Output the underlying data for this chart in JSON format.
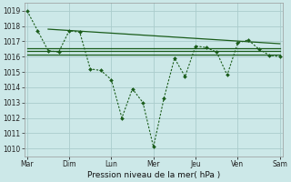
{
  "bg_color": "#cce8e8",
  "grid_color": "#aacccc",
  "line_color": "#1a5c1a",
  "xlabel": "Pression niveau de la mer( hPa )",
  "ylim": [
    1009.5,
    1019.5
  ],
  "yticks": [
    1010,
    1011,
    1012,
    1013,
    1014,
    1015,
    1016,
    1017,
    1018,
    1019
  ],
  "x_labels": [
    "Mar",
    "Dim",
    "Lun",
    "Mer",
    "Jeu",
    "Ven",
    "Sam"
  ],
  "x_ticks": [
    0,
    8,
    16,
    24,
    32,
    40,
    48
  ],
  "xlim": [
    -0.5,
    48.5
  ],
  "series_dotted": {
    "x": [
      0,
      2,
      4,
      6,
      8,
      10,
      12,
      14,
      16,
      18,
      20,
      22,
      24,
      26,
      28,
      30,
      32,
      34,
      36,
      38,
      40,
      42,
      44,
      46,
      48
    ],
    "y": [
      1019.0,
      1017.7,
      1016.4,
      1016.3,
      1017.7,
      1017.6,
      1015.2,
      1015.1,
      1014.5,
      1012.0,
      1013.9,
      1013.0,
      1010.1,
      1013.3,
      1015.9,
      1014.7,
      1016.7,
      1016.6,
      1016.3,
      1014.8,
      1016.9,
      1017.1,
      1016.5,
      1016.1,
      1016.0
    ]
  },
  "series_flat1": {
    "x": [
      0,
      48
    ],
    "y": [
      1016.35,
      1016.35
    ]
  },
  "series_flat2": {
    "x": [
      0,
      48
    ],
    "y": [
      1016.15,
      1016.15
    ]
  },
  "series_flat3": {
    "x": [
      0,
      48
    ],
    "y": [
      1016.55,
      1016.55
    ]
  },
  "series_sloped": {
    "x": [
      4,
      48
    ],
    "y": [
      1017.8,
      1016.85
    ]
  },
  "tick_fontsize": 5.5,
  "xlabel_fontsize": 6.5
}
